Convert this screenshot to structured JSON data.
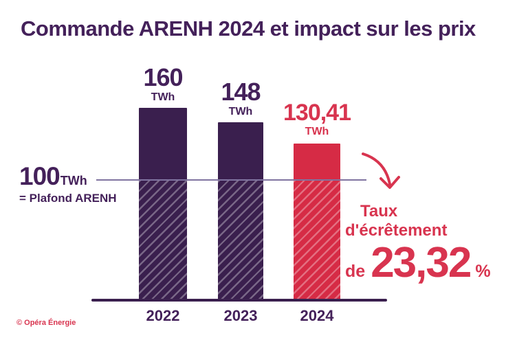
{
  "title": "Commande ARENH 2024 et impact sur les prix",
  "copyright": "© Opéra Énergie",
  "threshold": {
    "value": "100",
    "unit": "TWh",
    "caption": "= Plafond ARENH"
  },
  "annotation": {
    "line1": "Taux",
    "line2": "d'écrêtement",
    "prefix": "de",
    "value": "23,32",
    "unit": "%"
  },
  "colors": {
    "purple_bar": "#3A1F4E",
    "purple_text": "#44215A",
    "red_bar": "#D62B45",
    "red_text": "#D8344F",
    "ref_line": "#8074A0",
    "background": "#FFFFFF"
  },
  "chart_data": {
    "type": "bar",
    "title": "Commande ARENH 2024 et impact sur les prix",
    "categories": [
      "2022",
      "2023",
      "2024"
    ],
    "values": [
      160,
      148,
      130.41
    ],
    "value_labels": [
      "160",
      "148",
      "130,41"
    ],
    "unit": "TWh",
    "ylim": [
      0,
      190
    ],
    "grid": false,
    "legend": "none",
    "bar_colors": [
      "#3A1F4E",
      "#3A1F4E",
      "#D62B45"
    ],
    "label_colors": [
      "#44215A",
      "#44215A",
      "#D8344F"
    ],
    "reference_line": {
      "value": 100,
      "unit": "TWh",
      "label": "= Plafond ARENH"
    },
    "hatch_below_value": 100,
    "annotation": "Taux d'écrêtement de 23,32 %",
    "source": "© Opéra Énergie"
  }
}
